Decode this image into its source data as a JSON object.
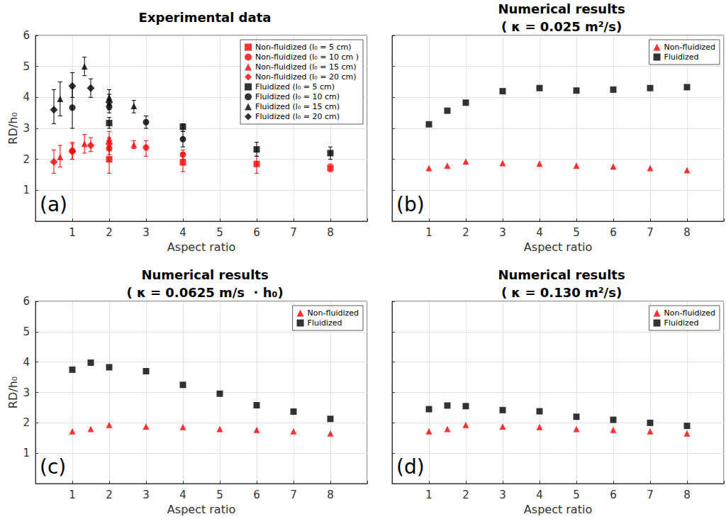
{
  "chart_data": [
    {
      "type": "scatter",
      "title": "Experimental data",
      "annotation": "(a)",
      "xlabel": "Aspect ratio",
      "ylabel": "RD/h₀",
      "xlim": [
        0,
        9
      ],
      "xticks": [
        1,
        2,
        3,
        4,
        5,
        6,
        7,
        8
      ],
      "ylim": [
        0,
        6
      ],
      "yticks": [
        1,
        2,
        3,
        4,
        5,
        6
      ],
      "grid": true,
      "legend": "upper right",
      "series": [
        {
          "name": "Non-fluidized (l₀ = 5 cm)",
          "color": "#ff0000",
          "marker": "square",
          "x": [
            2,
            4,
            6,
            8
          ],
          "values": [
            2.0,
            1.9,
            1.85,
            1.72
          ],
          "error_low": [
            1.55,
            1.6,
            1.55,
            1.6
          ],
          "error_high": [
            2.4,
            2.2,
            2.1,
            1.85
          ]
        },
        {
          "name": "Non-fluidized (l₀ = 10 cm )",
          "color": "#ff0000",
          "marker": "circle",
          "x": [
            1,
            2,
            3,
            4
          ],
          "values": [
            2.28,
            2.35,
            2.38,
            2.15
          ],
          "error_low": [
            2.0,
            2.15,
            2.1,
            2.0
          ],
          "error_high": [
            2.55,
            2.55,
            2.6,
            2.3
          ]
        },
        {
          "name": "Non-fluidized (l₀ = 15 cm)",
          "color": "#ff0000",
          "marker": "triangle",
          "x": [
            0.67,
            1.33,
            2,
            2.67
          ],
          "values": [
            2.07,
            2.5,
            2.67,
            2.47
          ],
          "error_low": [
            1.75,
            2.2,
            2.4,
            2.35
          ],
          "error_high": [
            2.45,
            2.8,
            2.9,
            2.6
          ]
        },
        {
          "name": "Non-fluidized (l₀ = 20 cm)",
          "color": "#ff0000",
          "marker": "diamond",
          "x": [
            0.5,
            1,
            1.5,
            2
          ],
          "values": [
            1.92,
            2.25,
            2.45,
            2.5
          ],
          "error_low": [
            1.55,
            2.0,
            2.25,
            2.3
          ],
          "error_high": [
            2.3,
            2.5,
            2.7,
            2.7
          ]
        },
        {
          "name": "Fluidized (l₀ = 5 cm)",
          "color": "#000000",
          "marker": "square",
          "x": [
            2,
            4,
            6,
            8
          ],
          "values": [
            3.17,
            3.05,
            2.32,
            2.2
          ],
          "error_low": [
            3.0,
            2.9,
            2.1,
            2.0
          ],
          "error_high": [
            3.35,
            3.15,
            2.55,
            2.4
          ]
        },
        {
          "name": "Fluidized (l₀ = 10 cm)",
          "color": "#000000",
          "marker": "circle",
          "x": [
            1,
            2,
            3,
            4
          ],
          "values": [
            3.67,
            3.7,
            3.2,
            2.65
          ],
          "error_low": [
            3.0,
            3.5,
            3.0,
            2.4
          ],
          "error_high": [
            4.3,
            3.9,
            3.4,
            2.9
          ]
        },
        {
          "name": "Fluidized (l₀ = 15 cm)",
          "color": "#000000",
          "marker": "triangle",
          "x": [
            0.67,
            1.33,
            2,
            2.67
          ],
          "values": [
            3.95,
            5.0,
            4.0,
            3.72
          ],
          "error_low": [
            3.4,
            4.7,
            3.75,
            3.5
          ],
          "error_high": [
            4.5,
            5.3,
            4.25,
            3.9
          ]
        },
        {
          "name": "Fluidized (l₀ = 20 cm)",
          "color": "#000000",
          "marker": "diamond",
          "x": [
            0.5,
            1,
            1.5,
            2
          ],
          "values": [
            3.6,
            4.37,
            4.3,
            3.85
          ],
          "error_low": [
            3.15,
            4.0,
            4.0,
            3.6
          ],
          "error_high": [
            4.25,
            4.8,
            4.6,
            4.1
          ]
        }
      ]
    },
    {
      "type": "scatter",
      "title": "Numerical results",
      "subtitle": "( κ = 0.025 m²/s)",
      "annotation": "(b)",
      "xlabel": "Aspect ratio",
      "xlim": [
        0,
        9
      ],
      "xticks": [
        1,
        2,
        3,
        4,
        5,
        6,
        7,
        8
      ],
      "ylim": [
        0,
        6
      ],
      "yticks": [
        1,
        2,
        3,
        4,
        5,
        6
      ],
      "grid": true,
      "legend": "upper right",
      "tick_labels": "x",
      "x": [
        1,
        1.5,
        2,
        3,
        4,
        5,
        6,
        7,
        8
      ],
      "series": [
        {
          "name": "Non-fluidized",
          "color": "#ff0000",
          "marker": "triangle",
          "values": [
            1.72,
            1.8,
            1.93,
            1.88,
            1.86,
            1.8,
            1.77,
            1.72,
            1.65
          ]
        },
        {
          "name": "Fluidized",
          "color": "#000000",
          "marker": "square",
          "values": [
            3.13,
            3.57,
            3.83,
            4.2,
            4.3,
            4.22,
            4.25,
            4.3,
            4.33
          ]
        }
      ]
    },
    {
      "type": "scatter",
      "title": "Numerical results",
      "subtitle": "( κ = 0.0625 m/s  · h₀)",
      "annotation": "(c)",
      "xlabel": "Aspect ratio",
      "ylabel": "RD/h₀",
      "xlim": [
        0,
        9
      ],
      "xticks": [
        1,
        2,
        3,
        4,
        5,
        6,
        7,
        8
      ],
      "ylim": [
        0,
        6
      ],
      "yticks": [
        1,
        2,
        3,
        4,
        5,
        6
      ],
      "grid": true,
      "legend": "upper right",
      "x": [
        1,
        1.5,
        2,
        3,
        4,
        5,
        6,
        7,
        8
      ],
      "series": [
        {
          "name": "Non-fluidized",
          "color": "#ff0000",
          "marker": "triangle",
          "values": [
            1.72,
            1.8,
            1.93,
            1.88,
            1.86,
            1.8,
            1.77,
            1.72,
            1.65
          ]
        },
        {
          "name": "Fluidized",
          "color": "#000000",
          "marker": "square",
          "values": [
            3.75,
            3.98,
            3.83,
            3.7,
            3.25,
            2.96,
            2.58,
            2.37,
            2.13
          ]
        }
      ]
    },
    {
      "type": "scatter",
      "title": "Numerical results",
      "subtitle": "( κ = 0.130 m²/s)",
      "annotation": "(d)",
      "xlabel": "Aspect ratio",
      "xlim": [
        0,
        9
      ],
      "xticks": [
        1,
        2,
        3,
        4,
        5,
        6,
        7,
        8
      ],
      "ylim": [
        0,
        6
      ],
      "yticks": [
        1,
        2,
        3,
        4,
        5,
        6
      ],
      "grid": true,
      "legend": "upper right",
      "tick_labels": "x",
      "x": [
        1,
        1.5,
        2,
        3,
        4,
        5,
        6,
        7,
        8
      ],
      "series": [
        {
          "name": "Non-fluidized",
          "color": "#ff0000",
          "marker": "triangle",
          "values": [
            1.72,
            1.8,
            1.93,
            1.88,
            1.86,
            1.8,
            1.77,
            1.72,
            1.65
          ]
        },
        {
          "name": "Fluidized",
          "color": "#000000",
          "marker": "square",
          "values": [
            2.45,
            2.57,
            2.55,
            2.42,
            2.38,
            2.2,
            2.1,
            2.0,
            1.9
          ]
        }
      ]
    }
  ]
}
